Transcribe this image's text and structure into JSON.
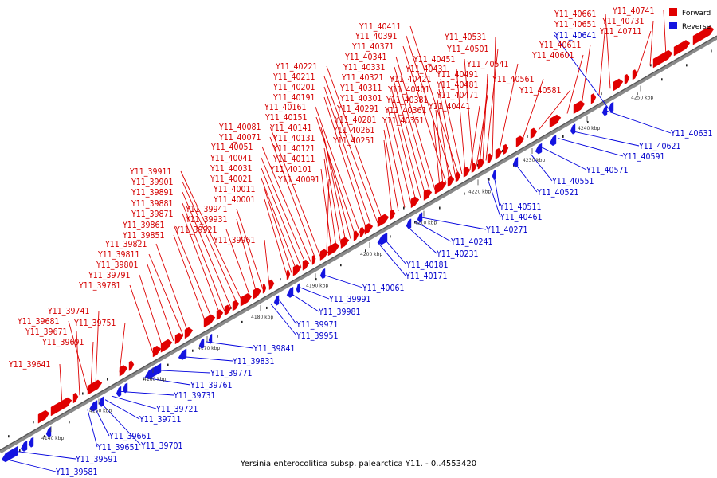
{
  "caption": "Yersinia enterocolitica subsp. palearctica Y11. - 0..4553420",
  "legend": [
    {
      "label": "Forward",
      "color": "#e00000"
    },
    {
      "label": "Reverse",
      "color": "#1414e0"
    }
  ],
  "scale_ticks": [
    "4140 kbp",
    "4150 kbp",
    "4160 kbp",
    "4170 kbp",
    "4180 kbp",
    "4190 kbp",
    "4200 kbp",
    "4210 kbp",
    "4220 kbp",
    "4230 kbp",
    "4240 kbp",
    "4250 kbp"
  ],
  "forward_genes": [
    "Y11_39641",
    "Y11_39671",
    "Y11_39681",
    "Y11_39691",
    "Y11_39741",
    "Y11_39751",
    "Y11_39781",
    "Y11_39791",
    "Y11_39801",
    "Y11_39811",
    "Y11_39821",
    "Y11_39851",
    "Y11_39861",
    "Y11_39871",
    "Y11_39881",
    "Y11_39891",
    "Y11_39901",
    "Y11_39911",
    "Y11_39921",
    "Y11_39931",
    "Y11_39941",
    "Y11_39961",
    "Y11_40001",
    "Y11_40011",
    "Y11_40021",
    "Y11_40031",
    "Y11_40041",
    "Y11_40051",
    "Y11_40071",
    "Y11_40081",
    "Y11_40091",
    "Y11_40101",
    "Y11_40111",
    "Y11_40121",
    "Y11_40131",
    "Y11_40141",
    "Y11_40151",
    "Y11_40161",
    "Y11_40191",
    "Y11_40201",
    "Y11_40211",
    "Y11_40221",
    "Y11_40251",
    "Y11_40261",
    "Y11_40281",
    "Y11_40291",
    "Y11_40301",
    "Y11_40311",
    "Y11_40321",
    "Y11_40331",
    "Y11_40341",
    "Y11_40351",
    "Y11_40361",
    "Y11_40371",
    "Y11_40381",
    "Y11_40391",
    "Y11_40401",
    "Y11_40411",
    "Y11_40421",
    "Y11_40431",
    "Y11_40441",
    "Y11_40451",
    "Y11_40471",
    "Y11_40481",
    "Y11_40491",
    "Y11_40501",
    "Y11_40531",
    "Y11_40541",
    "Y11_40561",
    "Y11_40581",
    "Y11_40601",
    "Y11_40611",
    "Y11_40651",
    "Y11_40661",
    "Y11_40711",
    "Y11_40731",
    "Y11_40741"
  ],
  "reverse_genes": [
    "Y11_39581",
    "Y11_39591",
    "Y11_39651",
    "Y11_39661",
    "Y11_39701",
    "Y11_39711",
    "Y11_39721",
    "Y11_39731",
    "Y11_39761",
    "Y11_39771",
    "Y11_39831",
    "Y11_39841",
    "Y11_39951",
    "Y11_39971",
    "Y11_39981",
    "Y11_39991",
    "Y11_40061",
    "Y11_40171",
    "Y11_40181",
    "Y11_40231",
    "Y11_40241",
    "Y11_40271",
    "Y11_40461",
    "Y11_40511",
    "Y11_40521",
    "Y11_40551",
    "Y11_40571",
    "Y11_40591",
    "Y11_40621",
    "Y11_40631",
    "Y11_40641"
  ]
}
